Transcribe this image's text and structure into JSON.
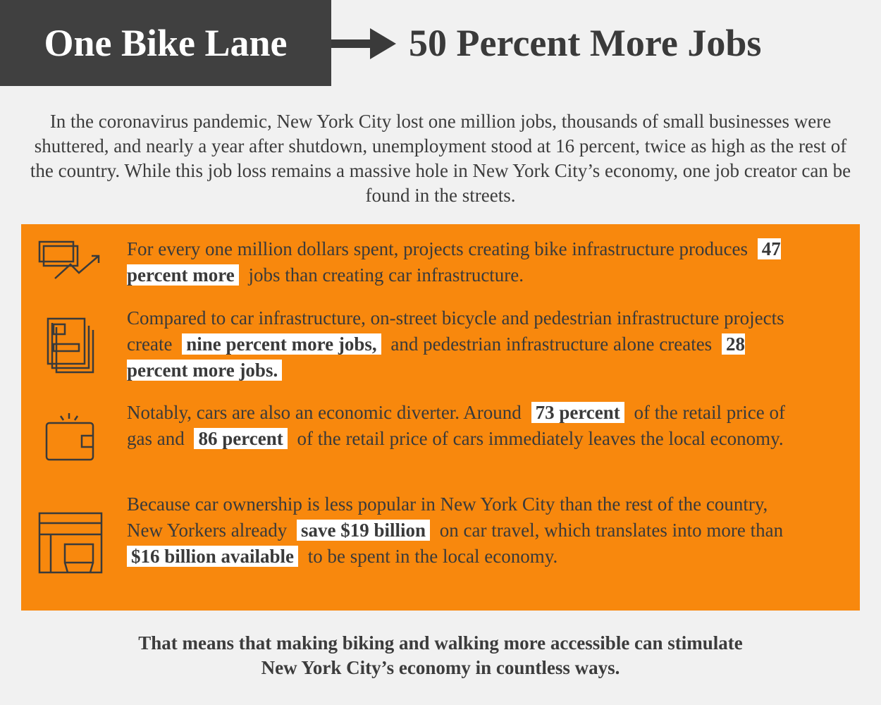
{
  "header": {
    "left": "One Bike Lane",
    "right": "50 Percent More Jobs"
  },
  "intro": "In the coronavirus pandemic, New York City lost one million jobs, thousands of small businesses were shuttered, and nearly a year after shutdown, unemployment stood at 16 percent, twice as high as the rest of the country. While this job loss remains a massive hole in New York City’s economy, one job creator can be found in the streets.",
  "points": [
    {
      "segments": [
        "For every one million dollars spent, projects creating bike infrastructure produces",
        "47 percent more",
        "jobs than creating car infrastructure."
      ]
    },
    {
      "segments": [
        "Compared to car infrastructure, on-street bicycle and pedestrian infrastructure projects create",
        "nine percent more jobs,",
        "and pedestrian infrastructure alone creates",
        "28 percent more jobs."
      ]
    },
    {
      "segments": [
        "Notably, cars are also an economic diverter. Around",
        "73 percent",
        "of the retail price of gas and",
        "86 percent",
        "of the retail price of cars immediately leaves the local economy."
      ]
    },
    {
      "segments": [
        "Because car ownership is less popular in New York City than the rest of the country, New Yorkers already",
        "save $19 billion",
        "on car travel, which translates into more than",
        "$16 billion available",
        "to be spent in the local economy."
      ]
    }
  ],
  "conclusion": "That means that making biking and walking more accessible can stimulate New York City’s economy in countless ways."
}
